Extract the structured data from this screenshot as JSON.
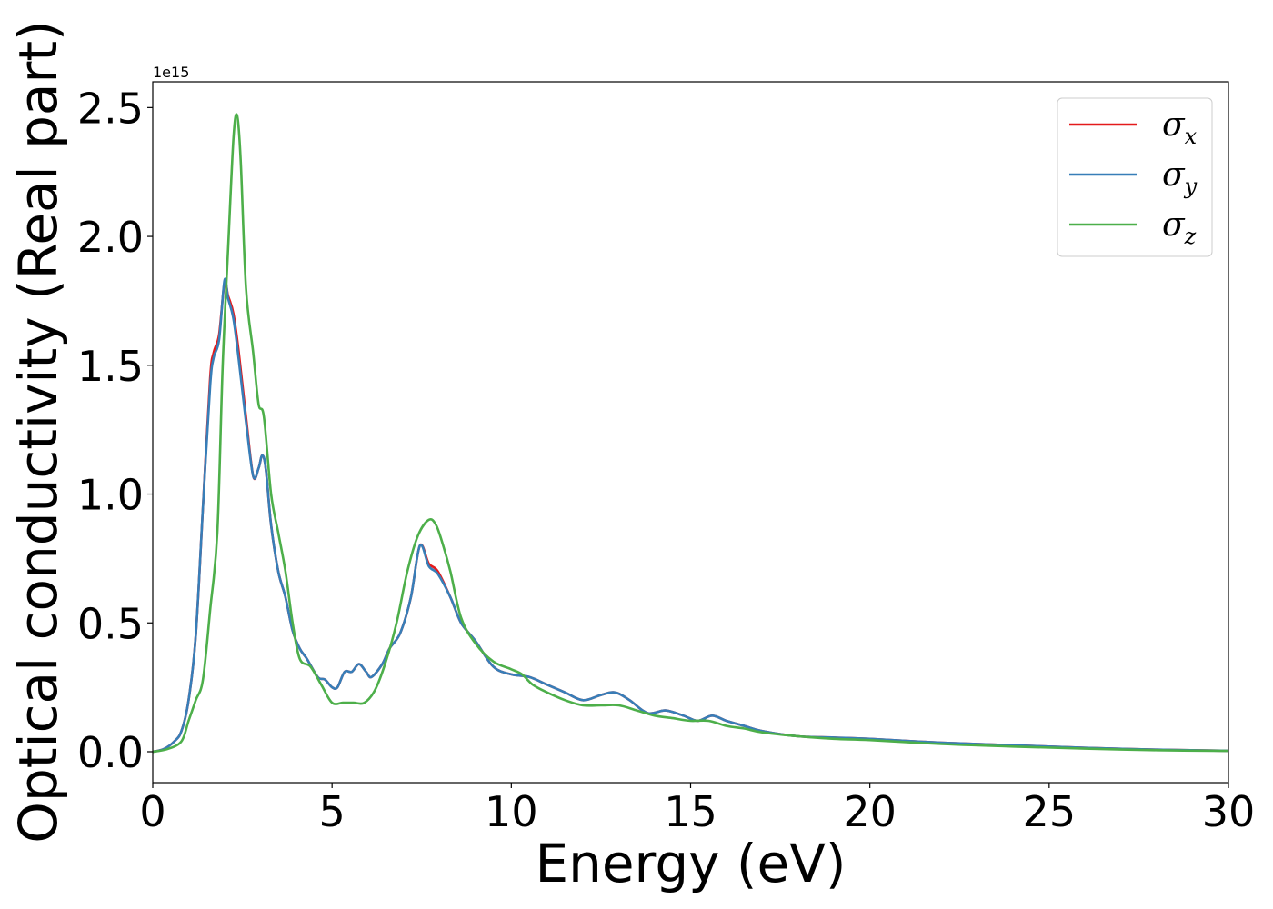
{
  "chart_data": {
    "type": "line",
    "xlabel": "Energy (eV)",
    "ylabel": "Optical conductivity (Real part)",
    "y_offset_label": "1e15",
    "xlim": [
      0,
      30
    ],
    "ylim": [
      -0.12,
      2.6
    ],
    "x_ticks": [
      0,
      5,
      10,
      15,
      20,
      25,
      30
    ],
    "x_tick_labels": [
      "0",
      "5",
      "10",
      "15",
      "20",
      "25",
      "30"
    ],
    "y_ticks": [
      0.0,
      0.5,
      1.0,
      1.5,
      2.0,
      2.5
    ],
    "y_tick_labels": [
      "0.0",
      "0.5",
      "1.0",
      "1.5",
      "2.0",
      "2.5"
    ],
    "grid": false,
    "legend_position": "top-right",
    "series": [
      {
        "name": "σx",
        "label_base": "σ",
        "label_sub": "x",
        "color": "#e41a1c",
        "x": [
          0,
          0.3,
          0.6,
          0.8,
          1.0,
          1.2,
          1.4,
          1.6,
          1.7,
          1.85,
          2.0,
          2.1,
          2.25,
          2.4,
          2.6,
          2.8,
          2.95,
          3.05,
          3.15,
          3.3,
          3.5,
          3.7,
          3.9,
          4.1,
          4.3,
          4.6,
          4.8,
          5.0,
          5.15,
          5.35,
          5.55,
          5.75,
          5.95,
          6.1,
          6.4,
          6.6,
          6.9,
          7.2,
          7.45,
          7.7,
          7.95,
          8.3,
          8.6,
          9.0,
          9.5,
          10.0,
          10.5,
          11.0,
          11.5,
          12.0,
          12.5,
          12.9,
          13.3,
          13.8,
          14.3,
          14.8,
          15.2,
          15.6,
          16.0,
          16.5,
          17.0,
          18.0,
          19.0,
          20.0,
          22.0,
          24.0,
          26.0,
          28.0,
          30.0
        ],
        "y": [
          0,
          0.01,
          0.04,
          0.08,
          0.2,
          0.45,
          0.95,
          1.45,
          1.55,
          1.62,
          1.82,
          1.77,
          1.7,
          1.55,
          1.3,
          1.07,
          1.1,
          1.15,
          1.1,
          0.88,
          0.7,
          0.6,
          0.47,
          0.4,
          0.36,
          0.29,
          0.28,
          0.25,
          0.25,
          0.31,
          0.31,
          0.34,
          0.31,
          0.29,
          0.34,
          0.4,
          0.46,
          0.6,
          0.8,
          0.73,
          0.7,
          0.6,
          0.5,
          0.43,
          0.33,
          0.3,
          0.29,
          0.26,
          0.23,
          0.2,
          0.22,
          0.23,
          0.2,
          0.15,
          0.16,
          0.14,
          0.12,
          0.14,
          0.12,
          0.1,
          0.08,
          0.06,
          0.055,
          0.05,
          0.035,
          0.025,
          0.015,
          0.008,
          0.004
        ]
      },
      {
        "name": "σy",
        "label_base": "σ",
        "label_sub": "y",
        "color": "#377eb8",
        "x": [
          0,
          0.3,
          0.6,
          0.8,
          1.0,
          1.2,
          1.4,
          1.6,
          1.7,
          1.85,
          2.0,
          2.1,
          2.25,
          2.4,
          2.6,
          2.8,
          2.95,
          3.05,
          3.15,
          3.3,
          3.5,
          3.7,
          3.9,
          4.1,
          4.3,
          4.6,
          4.8,
          5.0,
          5.15,
          5.35,
          5.55,
          5.75,
          5.95,
          6.1,
          6.4,
          6.6,
          6.9,
          7.2,
          7.45,
          7.7,
          7.95,
          8.3,
          8.6,
          9.0,
          9.5,
          10.0,
          10.5,
          11.0,
          11.5,
          12.0,
          12.5,
          12.9,
          13.3,
          13.8,
          14.3,
          14.8,
          15.2,
          15.6,
          16.0,
          16.5,
          17.0,
          18.0,
          19.0,
          20.0,
          22.0,
          24.0,
          26.0,
          28.0,
          30.0
        ],
        "y": [
          0,
          0.01,
          0.04,
          0.08,
          0.2,
          0.45,
          0.95,
          1.42,
          1.53,
          1.6,
          1.83,
          1.76,
          1.68,
          1.52,
          1.28,
          1.07,
          1.1,
          1.15,
          1.1,
          0.88,
          0.7,
          0.6,
          0.47,
          0.4,
          0.36,
          0.29,
          0.28,
          0.25,
          0.25,
          0.31,
          0.31,
          0.34,
          0.31,
          0.29,
          0.34,
          0.4,
          0.46,
          0.6,
          0.8,
          0.72,
          0.69,
          0.6,
          0.5,
          0.43,
          0.33,
          0.3,
          0.29,
          0.26,
          0.23,
          0.2,
          0.22,
          0.23,
          0.2,
          0.15,
          0.16,
          0.14,
          0.12,
          0.14,
          0.12,
          0.1,
          0.08,
          0.06,
          0.055,
          0.05,
          0.035,
          0.025,
          0.015,
          0.008,
          0.004
        ]
      },
      {
        "name": "σz",
        "label_base": "σ",
        "label_sub": "z",
        "color": "#4daf4a",
        "x": [
          0,
          0.4,
          0.8,
          1.0,
          1.2,
          1.4,
          1.6,
          1.8,
          1.95,
          2.1,
          2.25,
          2.35,
          2.45,
          2.6,
          2.8,
          2.95,
          3.1,
          3.3,
          3.5,
          3.7,
          3.9,
          4.1,
          4.4,
          4.7,
          5.0,
          5.3,
          5.6,
          5.9,
          6.2,
          6.5,
          6.8,
          7.1,
          7.4,
          7.7,
          7.9,
          8.1,
          8.3,
          8.6,
          9.0,
          9.5,
          10.0,
          10.3,
          10.6,
          11.0,
          11.5,
          12.0,
          12.5,
          13.0,
          13.5,
          14.0,
          14.5,
          15.0,
          15.5,
          16.0,
          16.5,
          17.0,
          18.0,
          19.0,
          20.0,
          22.0,
          24.0,
          26.0,
          28.0,
          30.0
        ],
        "y": [
          0,
          0.01,
          0.04,
          0.12,
          0.2,
          0.28,
          0.55,
          0.85,
          1.5,
          1.95,
          2.38,
          2.47,
          2.3,
          1.8,
          1.55,
          1.35,
          1.3,
          1.0,
          0.85,
          0.7,
          0.5,
          0.36,
          0.33,
          0.26,
          0.19,
          0.19,
          0.19,
          0.19,
          0.24,
          0.35,
          0.5,
          0.7,
          0.84,
          0.9,
          0.88,
          0.8,
          0.7,
          0.52,
          0.42,
          0.35,
          0.32,
          0.3,
          0.26,
          0.23,
          0.2,
          0.18,
          0.18,
          0.18,
          0.16,
          0.14,
          0.13,
          0.12,
          0.12,
          0.1,
          0.09,
          0.075,
          0.06,
          0.05,
          0.045,
          0.03,
          0.02,
          0.012,
          0.006,
          0.003
        ]
      }
    ]
  }
}
